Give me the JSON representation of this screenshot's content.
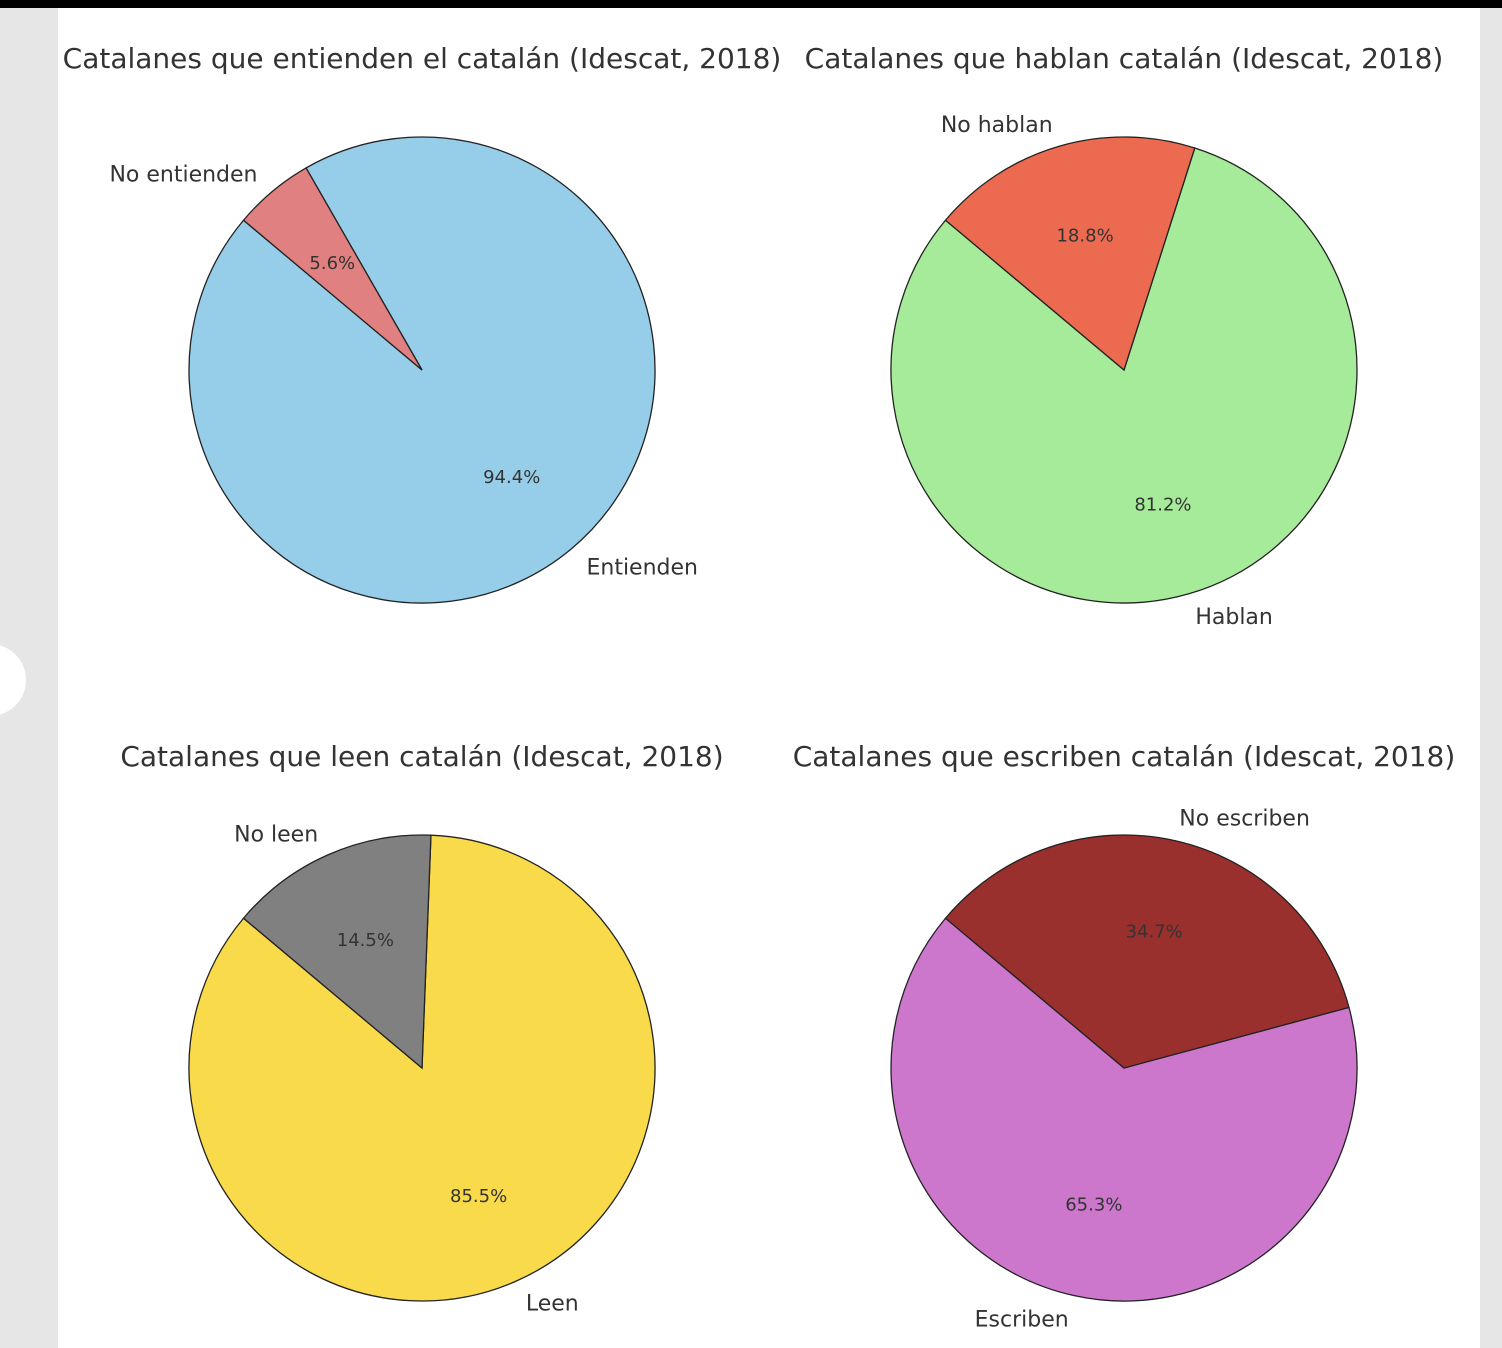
{
  "chart_data": [
    {
      "type": "pie",
      "title": "Catalanes que entienden el catalán (Idescat, 2018)",
      "labels": [
        "Entienden",
        "No entienden"
      ],
      "values": [
        94.4,
        5.6
      ],
      "pct_labels": [
        "94.4%",
        "5.6%"
      ],
      "colors": [
        "#96cde8",
        "#e08080"
      ],
      "startangle": 140
    },
    {
      "type": "pie",
      "title": "Catalanes que hablan catalán (Idescat, 2018)",
      "labels": [
        "Hablan",
        "No hablan"
      ],
      "values": [
        81.2,
        18.8
      ],
      "pct_labels": [
        "81.2%",
        "18.8%"
      ],
      "colors": [
        "#a6eb99",
        "#ec6a50"
      ],
      "startangle": 140
    },
    {
      "type": "pie",
      "title": "Catalanes que leen catalán (Idescat, 2018)",
      "labels": [
        "Leen",
        "No leen"
      ],
      "values": [
        85.5,
        14.5
      ],
      "pct_labels": [
        "85.5%",
        "14.5%"
      ],
      "colors": [
        "#f8da4a",
        "#808080"
      ],
      "startangle": 140
    },
    {
      "type": "pie",
      "title": "Catalanes que escriben catalán (Idescat, 2018)",
      "labels": [
        "Escriben",
        "No escriben"
      ],
      "values": [
        65.3,
        34.7
      ],
      "pct_labels": [
        "65.3%",
        "34.7%"
      ],
      "colors": [
        "#cc77cc",
        "#9a302e"
      ],
      "startangle": 140
    }
  ]
}
